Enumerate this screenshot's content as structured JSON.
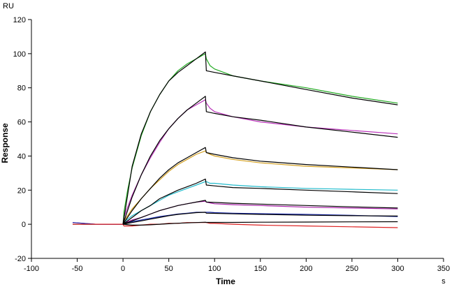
{
  "chart_data": {
    "type": "line",
    "title": "",
    "xlabel": "Time",
    "ylabel": "Response",
    "y_unit": "RU",
    "x_unit": "s",
    "xlim": [
      -100,
      350
    ],
    "ylim": [
      -20,
      120
    ],
    "x_ticks": [
      -100,
      -50,
      0,
      50,
      100,
      150,
      200,
      250,
      300,
      350
    ],
    "y_ticks": [
      -20,
      0,
      20,
      40,
      60,
      80,
      100,
      120
    ],
    "grid": false,
    "legend": "none",
    "series": [
      {
        "color": "#22aa22",
        "x": [
          -55,
          -30,
          0,
          1,
          5,
          10,
          20,
          30,
          40,
          50,
          60,
          70,
          80,
          90,
          91,
          95,
          100,
          120,
          150,
          200,
          250,
          300
        ],
        "y": [
          0,
          0,
          0,
          7,
          20,
          33,
          52,
          66,
          76,
          84,
          90,
          94,
          97,
          100,
          97,
          93,
          91,
          87,
          84,
          80,
          75,
          71
        ]
      },
      {
        "color": "#bb33bb",
        "x": [
          -55,
          -30,
          0,
          1,
          5,
          10,
          20,
          30,
          40,
          50,
          60,
          70,
          80,
          90,
          91,
          95,
          100,
          120,
          150,
          200,
          250,
          300
        ],
        "y": [
          0,
          0,
          0,
          4,
          10,
          17,
          29,
          39,
          48,
          56,
          62,
          67,
          70,
          73,
          71,
          68,
          66,
          63,
          60,
          57,
          55,
          53
        ]
      },
      {
        "color": "#d4a020",
        "x": [
          -55,
          -30,
          0,
          1,
          5,
          10,
          20,
          30,
          40,
          50,
          60,
          70,
          80,
          90,
          91,
          95,
          100,
          120,
          150,
          200,
          250,
          300
        ],
        "y": [
          0,
          0,
          0,
          2,
          5,
          9,
          15,
          21,
          26,
          31,
          35,
          38,
          41,
          43,
          42,
          41,
          40,
          38,
          36,
          34,
          33,
          32
        ]
      },
      {
        "color": "#22bbcc",
        "x": [
          -55,
          -30,
          0,
          1,
          5,
          10,
          20,
          30,
          40,
          50,
          60,
          70,
          80,
          90,
          91,
          95,
          100,
          120,
          150,
          200,
          250,
          300
        ],
        "y": [
          0,
          0,
          0,
          1,
          3,
          5,
          8,
          11,
          14,
          17,
          19,
          21,
          23,
          25,
          25,
          24,
          24,
          23,
          22,
          21,
          20.5,
          20
        ]
      },
      {
        "color": "#aa22aa",
        "x": [
          -55,
          -30,
          0,
          1,
          5,
          10,
          20,
          30,
          40,
          50,
          60,
          70,
          80,
          90,
          91,
          95,
          100,
          120,
          150,
          200,
          250,
          300
        ],
        "y": [
          1,
          0,
          0,
          0.5,
          1.5,
          2.5,
          4,
          6,
          8,
          9.5,
          11,
          12,
          13,
          13.5,
          13,
          12.5,
          12,
          11.5,
          11,
          10,
          9.5,
          9
        ]
      },
      {
        "color": "#1a2aa8",
        "x": [
          -55,
          -30,
          0,
          1,
          5,
          10,
          20,
          30,
          40,
          50,
          60,
          70,
          80,
          90,
          91,
          95,
          100,
          120,
          150,
          200,
          250,
          300
        ],
        "y": [
          1,
          0,
          0,
          0.5,
          1,
          1.5,
          2.5,
          3.5,
          4.5,
          5.2,
          6,
          6.5,
          7,
          7,
          7,
          7,
          6.8,
          6.5,
          6.2,
          5.8,
          5.2,
          4.5
        ]
      },
      {
        "color": "#dd2222",
        "x": [
          -55,
          -30,
          0,
          1,
          5,
          10,
          20,
          30,
          40,
          50,
          60,
          70,
          80,
          90,
          91,
          95,
          100,
          120,
          150,
          200,
          250,
          300
        ],
        "y": [
          0,
          0,
          0,
          -1,
          -1,
          -1,
          -0.5,
          0,
          0,
          0.5,
          0.5,
          1,
          1,
          1,
          1,
          0.5,
          0.5,
          0,
          -0.5,
          -1,
          -1.5,
          -2
        ]
      },
      {
        "color": "#000000",
        "x": [
          0,
          10,
          20,
          30,
          40,
          50,
          60,
          70,
          80,
          90,
          91,
          100,
          120,
          150,
          200,
          250,
          300
        ],
        "y": [
          0,
          34,
          53,
          66,
          76,
          84,
          89,
          93,
          97,
          101,
          90,
          89,
          87,
          84,
          79,
          74,
          70
        ]
      },
      {
        "color": "#000000",
        "x": [
          0,
          10,
          20,
          30,
          40,
          50,
          60,
          70,
          80,
          90,
          91,
          100,
          120,
          150,
          200,
          250,
          300
        ],
        "y": [
          0,
          16,
          29,
          40,
          49,
          56,
          62,
          67,
          71,
          75,
          66,
          65,
          63,
          61,
          57,
          54,
          51
        ]
      },
      {
        "color": "#000000",
        "x": [
          0,
          10,
          20,
          30,
          40,
          50,
          60,
          70,
          80,
          90,
          91,
          100,
          120,
          150,
          200,
          250,
          300
        ],
        "y": [
          0,
          8,
          15,
          21,
          27,
          32,
          36,
          39,
          42,
          45,
          42,
          41,
          39,
          37,
          35,
          33.5,
          32
        ]
      },
      {
        "color": "#000000",
        "x": [
          0,
          10,
          20,
          30,
          40,
          50,
          60,
          70,
          80,
          90,
          91,
          100,
          120,
          150,
          200,
          250,
          300
        ],
        "y": [
          0,
          4,
          8,
          11,
          15,
          17.5,
          20,
          22,
          24,
          26.5,
          23,
          22.5,
          21.5,
          21,
          20,
          19,
          18
        ]
      },
      {
        "color": "#000000",
        "x": [
          0,
          10,
          20,
          30,
          40,
          50,
          60,
          70,
          80,
          90,
          91,
          100,
          120,
          150,
          200,
          250,
          300
        ],
        "y": [
          0,
          2,
          4,
          6,
          8,
          9.5,
          11,
          12,
          13,
          14,
          13,
          12.8,
          12.3,
          11.8,
          11,
          10.2,
          9.5
        ]
      },
      {
        "color": "#000000",
        "x": [
          0,
          10,
          20,
          30,
          40,
          50,
          60,
          70,
          80,
          90,
          91,
          100,
          120,
          150,
          200,
          250,
          300
        ],
        "y": [
          0,
          1,
          2,
          3,
          4,
          5,
          5.8,
          6.3,
          6.8,
          7,
          6.5,
          6.4,
          6.1,
          5.8,
          5.3,
          5,
          4.8
        ]
      },
      {
        "color": "#000000",
        "x": [
          0,
          10,
          20,
          30,
          40,
          50,
          60,
          70,
          80,
          90,
          91,
          100,
          120,
          150,
          200,
          250,
          300
        ],
        "y": [
          0,
          -0.5,
          -0.5,
          -0.3,
          0,
          0.3,
          0.6,
          0.8,
          1,
          1.2,
          1.1,
          1.1,
          1.1,
          1.2,
          1.3,
          1.4,
          1.5
        ]
      }
    ]
  }
}
